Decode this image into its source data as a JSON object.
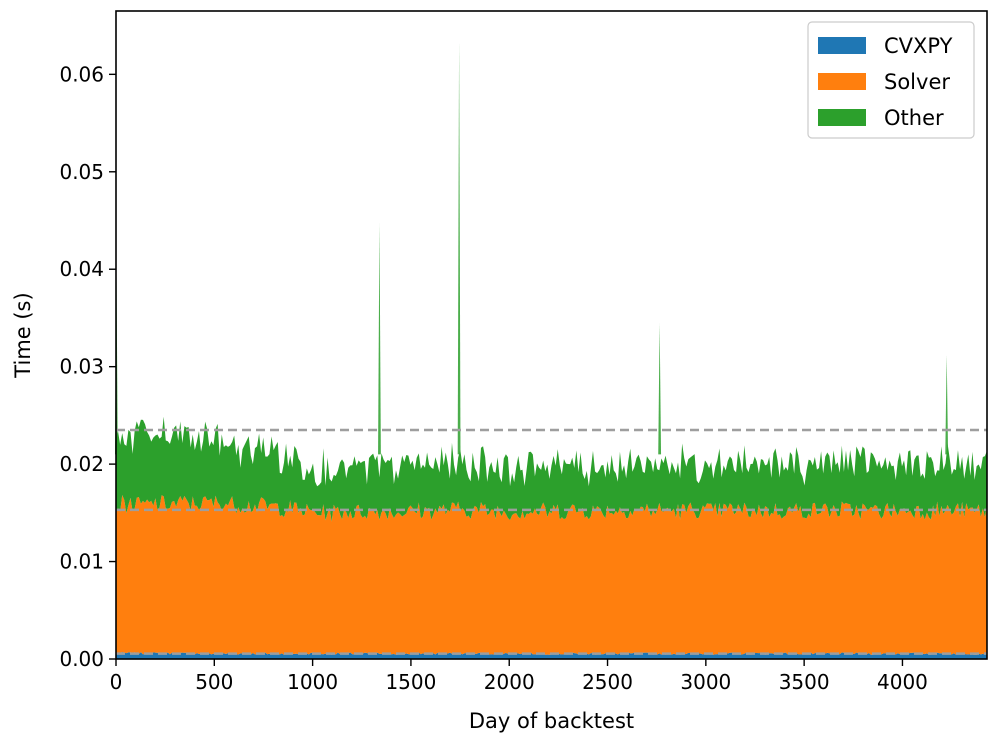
{
  "chart_data": {
    "type": "area",
    "stacked": true,
    "xlabel": "Day of backtest",
    "ylabel": "Time (s)",
    "xlim": [
      0,
      4430
    ],
    "ylim": [
      0,
      0.0665
    ],
    "xticks": [
      0,
      500,
      1000,
      1500,
      2000,
      2500,
      3000,
      3500,
      4000
    ],
    "xtick_labels": [
      "0",
      "500",
      "1000",
      "1500",
      "2000",
      "2500",
      "3000",
      "3500",
      "4000"
    ],
    "yticks": [
      0,
      0.01,
      0.02,
      0.03,
      0.04,
      0.05,
      0.06
    ],
    "ytick_labels": [
      "0.00",
      "0.01",
      "0.02",
      "0.03",
      "0.04",
      "0.05",
      "0.06"
    ],
    "grid": false,
    "legend_position": "top-right",
    "series": [
      {
        "name": "CVXPY",
        "color": "#1f77b4",
        "mean": 0.00055,
        "x": [
          0,
          500,
          1000,
          1500,
          2000,
          2500,
          3000,
          3500,
          4000,
          4430
        ],
        "values": [
          0.0006,
          0.00055,
          0.00055,
          0.00055,
          0.00055,
          0.00055,
          0.00055,
          0.00055,
          0.00055,
          0.00055
        ]
      },
      {
        "name": "Solver",
        "color": "#ff7f0e",
        "mean": 0.0148,
        "x": [
          0,
          500,
          850,
          1000,
          1500,
          1750,
          2000,
          2500,
          3000,
          3500,
          4000,
          4430
        ],
        "values": [
          0.0152,
          0.0155,
          0.015,
          0.0145,
          0.0146,
          0.0148,
          0.0146,
          0.0147,
          0.0147,
          0.0147,
          0.0147,
          0.0147
        ]
      },
      {
        "name": "Other",
        "color": "#2ca02c",
        "mean": 0.0082,
        "x": [
          0,
          500,
          850,
          1000,
          1500,
          2000,
          2500,
          3000,
          3500,
          4000,
          4430
        ],
        "values": [
          0.0072,
          0.0065,
          0.0055,
          0.0045,
          0.0048,
          0.0048,
          0.0048,
          0.0048,
          0.0048,
          0.0048,
          0.0048
        ]
      }
    ],
    "spikes": [
      {
        "x": 2,
        "total": 0.041
      },
      {
        "x": 1340,
        "total": 0.0448
      },
      {
        "x": 1745,
        "total": 0.0635
      },
      {
        "x": 2765,
        "total": 0.0345
      },
      {
        "x": 4225,
        "total": 0.0312
      }
    ],
    "mean_lines": [
      0.00055,
      0.0153,
      0.0235
    ]
  }
}
